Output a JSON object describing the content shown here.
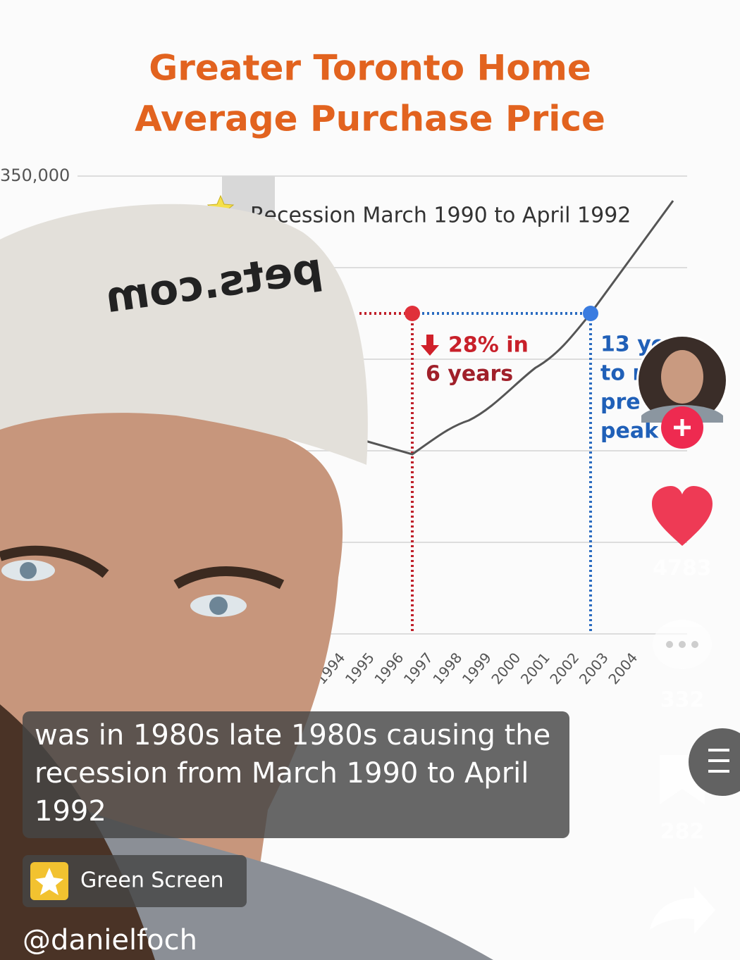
{
  "video": {
    "chart": {
      "title_lines": [
        "Greater Toronto Home",
        "Average Purchase Price"
      ],
      "y_tick": "350,000",
      "recession_label": "Recession March 1990 to April 1992",
      "drop_annotation": [
        "28% in",
        "6 years"
      ],
      "recovery_annotation": [
        "13 ye",
        "to r",
        "pre",
        "peak"
      ],
      "x_labels": [
        "1994",
        "1995",
        "1996",
        "1997",
        "1998",
        "1999",
        "2000",
        "2001",
        "2002",
        "2003",
        "2004"
      ]
    }
  },
  "caption": [
    "was in 1980s late 1980s causing the",
    "recession from March 1990 to April",
    "1992"
  ],
  "effect": "Green Screen",
  "username": "@danielfoch",
  "actions": {
    "likes": "4783",
    "comments": "332",
    "saves": "282"
  }
}
